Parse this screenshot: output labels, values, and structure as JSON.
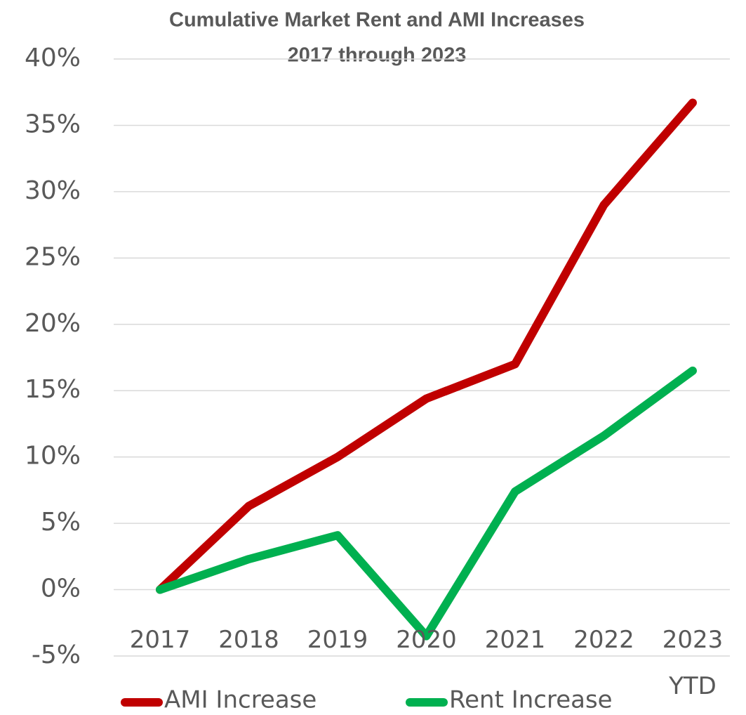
{
  "chart_data": {
    "type": "line",
    "title": "Cumulative Market Rent and AMI Increases",
    "subtitle": "2017 through 2023",
    "categories": [
      "2017",
      "2018",
      "2019",
      "2020",
      "2021",
      "2022",
      "2023 YTD"
    ],
    "series": [
      {
        "name": "AMI Increase",
        "color": "#c00000",
        "values": [
          0,
          6.3,
          10,
          14.4,
          17,
          29,
          36.7
        ]
      },
      {
        "name": "Rent Increase",
        "color": "#00b050",
        "values": [
          0,
          2.3,
          4.1,
          -3.5,
          7.4,
          11.6,
          16.5
        ]
      }
    ],
    "ylim": [
      -5,
      40
    ],
    "yticks": [
      {
        "value": -5,
        "label": "-5%"
      },
      {
        "value": 0,
        "label": "0%"
      },
      {
        "value": 5,
        "label": "5%"
      },
      {
        "value": 10,
        "label": "10%"
      },
      {
        "value": 15,
        "label": "15%"
      },
      {
        "value": 20,
        "label": "20%"
      },
      {
        "value": 25,
        "label": "25%"
      },
      {
        "value": 30,
        "label": "30%"
      },
      {
        "value": 35,
        "label": "35%"
      },
      {
        "value": 40,
        "label": "40%"
      }
    ],
    "grid": true,
    "legend": "bottom"
  }
}
